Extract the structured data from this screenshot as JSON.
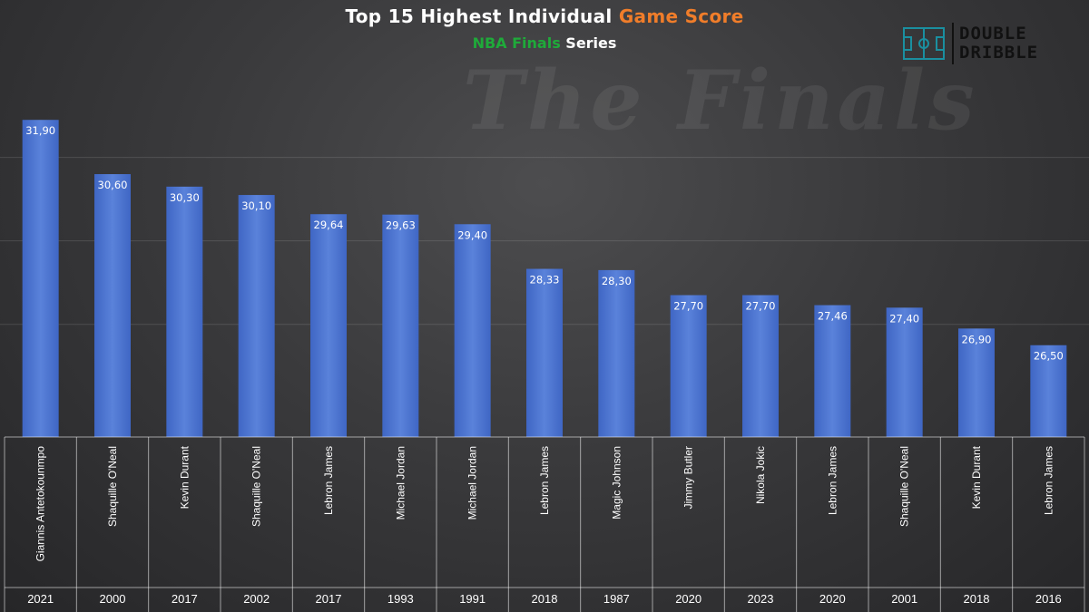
{
  "header": {
    "title_part1": "Top 15 Highest Individual ",
    "title_part2": "Game Score",
    "subtitle_part1": "NBA Finals",
    "subtitle_part2": " Series",
    "logo_line1": "DOUBLE",
    "logo_line2": "DRIBBLE",
    "watermark": "The Finals"
  },
  "colors": {
    "bar": "#4a74d1",
    "bar_light": "#6f93e0",
    "accent_orange": "#f07d2a",
    "accent_green": "#1faa3a",
    "background": "#3a3a3c"
  },
  "chart_data": {
    "type": "bar",
    "title": "Top 15 Highest Individual Game Score",
    "subtitle": "NBA Finals Series",
    "categories": [
      "Giannis Antetokounmpo",
      "Shaquille O'Neal",
      "Kevin Durant",
      "Shaquille O'Neal",
      "Lebron James",
      "Michael Jordan",
      "Michael Jordan",
      "Lebron James",
      "Magic Johnson",
      "Jimmy Butler",
      "Nikola Jokic",
      "Lebron James",
      "Shaquille O'Neal",
      "Kevin Durant",
      "Lebron James"
    ],
    "years": [
      "2021",
      "2000",
      "2017",
      "2002",
      "2017",
      "1993",
      "1991",
      "2018",
      "1987",
      "2020",
      "2023",
      "2020",
      "2001",
      "2018",
      "2016"
    ],
    "values": [
      31.9,
      30.6,
      30.3,
      30.1,
      29.64,
      29.63,
      29.4,
      28.33,
      28.3,
      27.7,
      27.7,
      27.46,
      27.4,
      26.9,
      26.5
    ],
    "value_labels": [
      "31,90",
      "30,60",
      "30,30",
      "30,10",
      "29,64",
      "29,63",
      "29,40",
      "28,33",
      "28,30",
      "27,70",
      "27,70",
      "27,46",
      "27,40",
      "26,90",
      "26,50"
    ],
    "ylim": [
      24.3,
      32.6
    ],
    "grid": true,
    "legend": "none"
  }
}
